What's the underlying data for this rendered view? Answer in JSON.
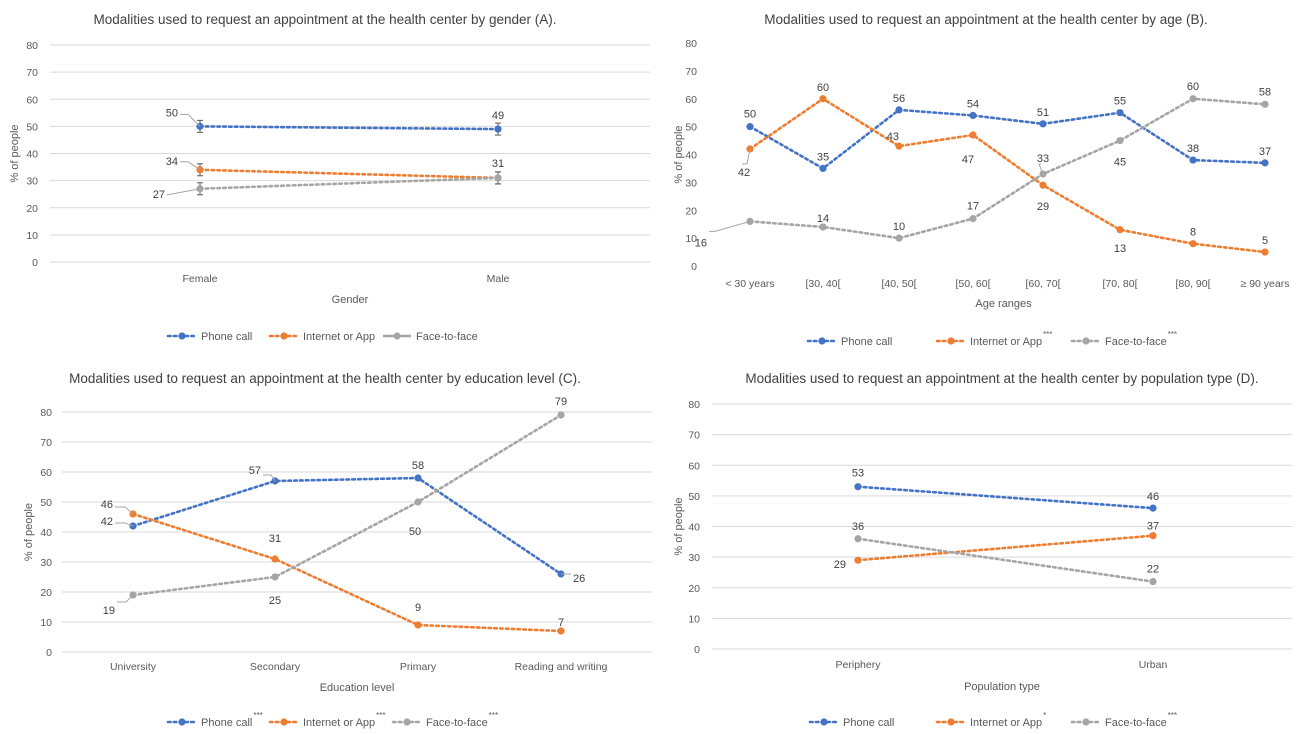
{
  "charts": [
    {
      "type": "line",
      "title": "Modalities used to request an appointment at the health center by gender  (A).",
      "xlabel": "Gender",
      "ylabel": "% of people",
      "categories": [
        "Female",
        "Male"
      ],
      "ylim": [
        0,
        80
      ],
      "yticks": [
        "0",
        "10",
        "20",
        "30",
        "40",
        "50",
        "60",
        "70",
        "80"
      ],
      "grid": true,
      "legend_position": "bottom",
      "series": [
        {
          "name": "Phone call",
          "color": "#4472c4",
          "values": [
            50,
            49
          ],
          "labels": [
            "50",
            "49"
          ],
          "sig": ""
        },
        {
          "name": "Internet or App",
          "color": "#ed7d31",
          "values": [
            34,
            31
          ],
          "labels": [
            "34",
            ""
          ],
          "sig": ""
        },
        {
          "name": "Face-to-face",
          "color": "#a5a5a5",
          "values": [
            27,
            31
          ],
          "labels": [
            "27",
            "31"
          ],
          "sig": ""
        }
      ]
    },
    {
      "type": "line",
      "title": "Modalities used to request an appointment at the health center by age (B).",
      "xlabel": "Age  ranges",
      "ylabel": "% of people",
      "categories": [
        "< 30 years",
        "[30, 40[",
        "[40, 50[",
        "[50, 60[",
        "[60, 70[",
        "[70, 80[",
        "[80, 90[",
        "≥ 90 years"
      ],
      "ylim": [
        0,
        80
      ],
      "yticks": [
        "0",
        "10",
        "20",
        "30",
        "40",
        "50",
        "60",
        "70",
        "80"
      ],
      "grid": false,
      "legend_position": "bottom",
      "series": [
        {
          "name": "Phone call",
          "color": "#4472c4",
          "values": [
            50,
            35,
            56,
            54,
            51,
            55,
            38,
            37
          ],
          "labels": [
            "50",
            "35",
            "56",
            "54",
            "51",
            "55",
            "38",
            "37"
          ],
          "sig": ""
        },
        {
          "name": "Internet or App",
          "color": "#ed7d31",
          "values": [
            42,
            60,
            43,
            47,
            29,
            13,
            8,
            5
          ],
          "labels": [
            "42",
            "60",
            "43",
            "47",
            "29",
            "13",
            "8",
            "5"
          ],
          "sig": "***"
        },
        {
          "name": "Face-to-face",
          "color": "#a5a5a5",
          "values": [
            16,
            14,
            10,
            17,
            33,
            45,
            60,
            58
          ],
          "labels": [
            "16",
            "14",
            "10",
            "17",
            "33",
            "45",
            "60",
            "58"
          ],
          "sig": "***"
        }
      ]
    },
    {
      "type": "line",
      "title": "Modalities used to request an appointment at the health center by education level (C).",
      "xlabel": "Education level",
      "ylabel": "% of people",
      "categories": [
        "University",
        "Secondary",
        "Primary",
        "Reading and writing"
      ],
      "ylim": [
        0,
        80
      ],
      "yticks": [
        "0",
        "10",
        "20",
        "30",
        "40",
        "50",
        "60",
        "70",
        "80"
      ],
      "grid": true,
      "legend_position": "bottom",
      "series": [
        {
          "name": "Phone call",
          "color": "#4472c4",
          "values": [
            42,
            57,
            58,
            26
          ],
          "labels": [
            "42",
            "57",
            "58",
            "26"
          ],
          "sig": "***"
        },
        {
          "name": "Internet or App",
          "color": "#ed7d31",
          "values": [
            46,
            31,
            9,
            7
          ],
          "labels": [
            "46",
            "31",
            "9",
            "7"
          ],
          "sig": "***"
        },
        {
          "name": "Face-to-face",
          "color": "#a5a5a5",
          "values": [
            19,
            25,
            50,
            79
          ],
          "labels": [
            "19",
            "25",
            "50",
            "79"
          ],
          "sig": "***"
        }
      ]
    },
    {
      "type": "line",
      "title": "Modalities used to request an appointment at the health center by population  type (D).",
      "xlabel": "Population type",
      "ylabel": "% of people",
      "categories": [
        "Periphery",
        "Urban"
      ],
      "ylim": [
        0,
        80
      ],
      "yticks": [
        "0",
        "10",
        "20",
        "30",
        "40",
        "50",
        "60",
        "70",
        "80"
      ],
      "grid": true,
      "legend_position": "bottom",
      "series": [
        {
          "name": "Phone call",
          "color": "#4472c4",
          "values": [
            53,
            46
          ],
          "labels": [
            "53",
            "46"
          ],
          "sig": ""
        },
        {
          "name": "Internet or App",
          "color": "#ed7d31",
          "values": [
            29,
            37
          ],
          "labels": [
            "29",
            "37"
          ],
          "sig": "*"
        },
        {
          "name": "Face-to-face",
          "color": "#a5a5a5",
          "values": [
            36,
            22
          ],
          "labels": [
            "36",
            "22"
          ],
          "sig": "***"
        }
      ]
    }
  ],
  "chart_data": [
    {
      "type": "line",
      "title": "Modalities used to request an appointment at the health center by gender  (A).",
      "xlabel": "Gender",
      "ylabel": "% of people",
      "categories": [
        "Female",
        "Male"
      ],
      "ylim": [
        0,
        80
      ],
      "series": [
        {
          "name": "Phone call",
          "values": [
            50,
            49
          ]
        },
        {
          "name": "Internet or App",
          "values": [
            34,
            31
          ]
        },
        {
          "name": "Face-to-face",
          "values": [
            27,
            31
          ]
        }
      ]
    },
    {
      "type": "line",
      "title": "Modalities used to request an appointment at the health center by age (B).",
      "xlabel": "Age  ranges",
      "ylabel": "% of people",
      "categories": [
        "< 30 years",
        "[30, 40[",
        "[40, 50[",
        "[50, 60[",
        "[60, 70[",
        "[70, 80[",
        "[80, 90[",
        "≥ 90 years"
      ],
      "ylim": [
        0,
        80
      ],
      "series": [
        {
          "name": "Phone call",
          "values": [
            50,
            35,
            56,
            54,
            51,
            55,
            38,
            37
          ]
        },
        {
          "name": "Internet or App",
          "values": [
            42,
            60,
            43,
            47,
            29,
            13,
            8,
            5
          ]
        },
        {
          "name": "Face-to-face",
          "values": [
            16,
            14,
            10,
            17,
            33,
            45,
            60,
            58
          ]
        }
      ]
    },
    {
      "type": "line",
      "title": "Modalities used to request an appointment at the health center by education level (C).",
      "xlabel": "Education level",
      "ylabel": "% of people",
      "categories": [
        "University",
        "Secondary",
        "Primary",
        "Reading and writing"
      ],
      "ylim": [
        0,
        80
      ],
      "series": [
        {
          "name": "Phone call",
          "values": [
            42,
            57,
            58,
            26
          ]
        },
        {
          "name": "Internet or App",
          "values": [
            46,
            31,
            9,
            7
          ]
        },
        {
          "name": "Face-to-face",
          "values": [
            19,
            25,
            50,
            79
          ]
        }
      ]
    },
    {
      "type": "line",
      "title": "Modalities used to request an appointment at the health center by population  type (D).",
      "xlabel": "Population type",
      "ylabel": "% of people",
      "categories": [
        "Periphery",
        "Urban"
      ],
      "ylim": [
        0,
        80
      ],
      "series": [
        {
          "name": "Phone call",
          "values": [
            53,
            46
          ]
        },
        {
          "name": "Internet or App",
          "values": [
            29,
            37
          ]
        },
        {
          "name": "Face-to-face",
          "values": [
            36,
            22
          ]
        }
      ]
    }
  ]
}
